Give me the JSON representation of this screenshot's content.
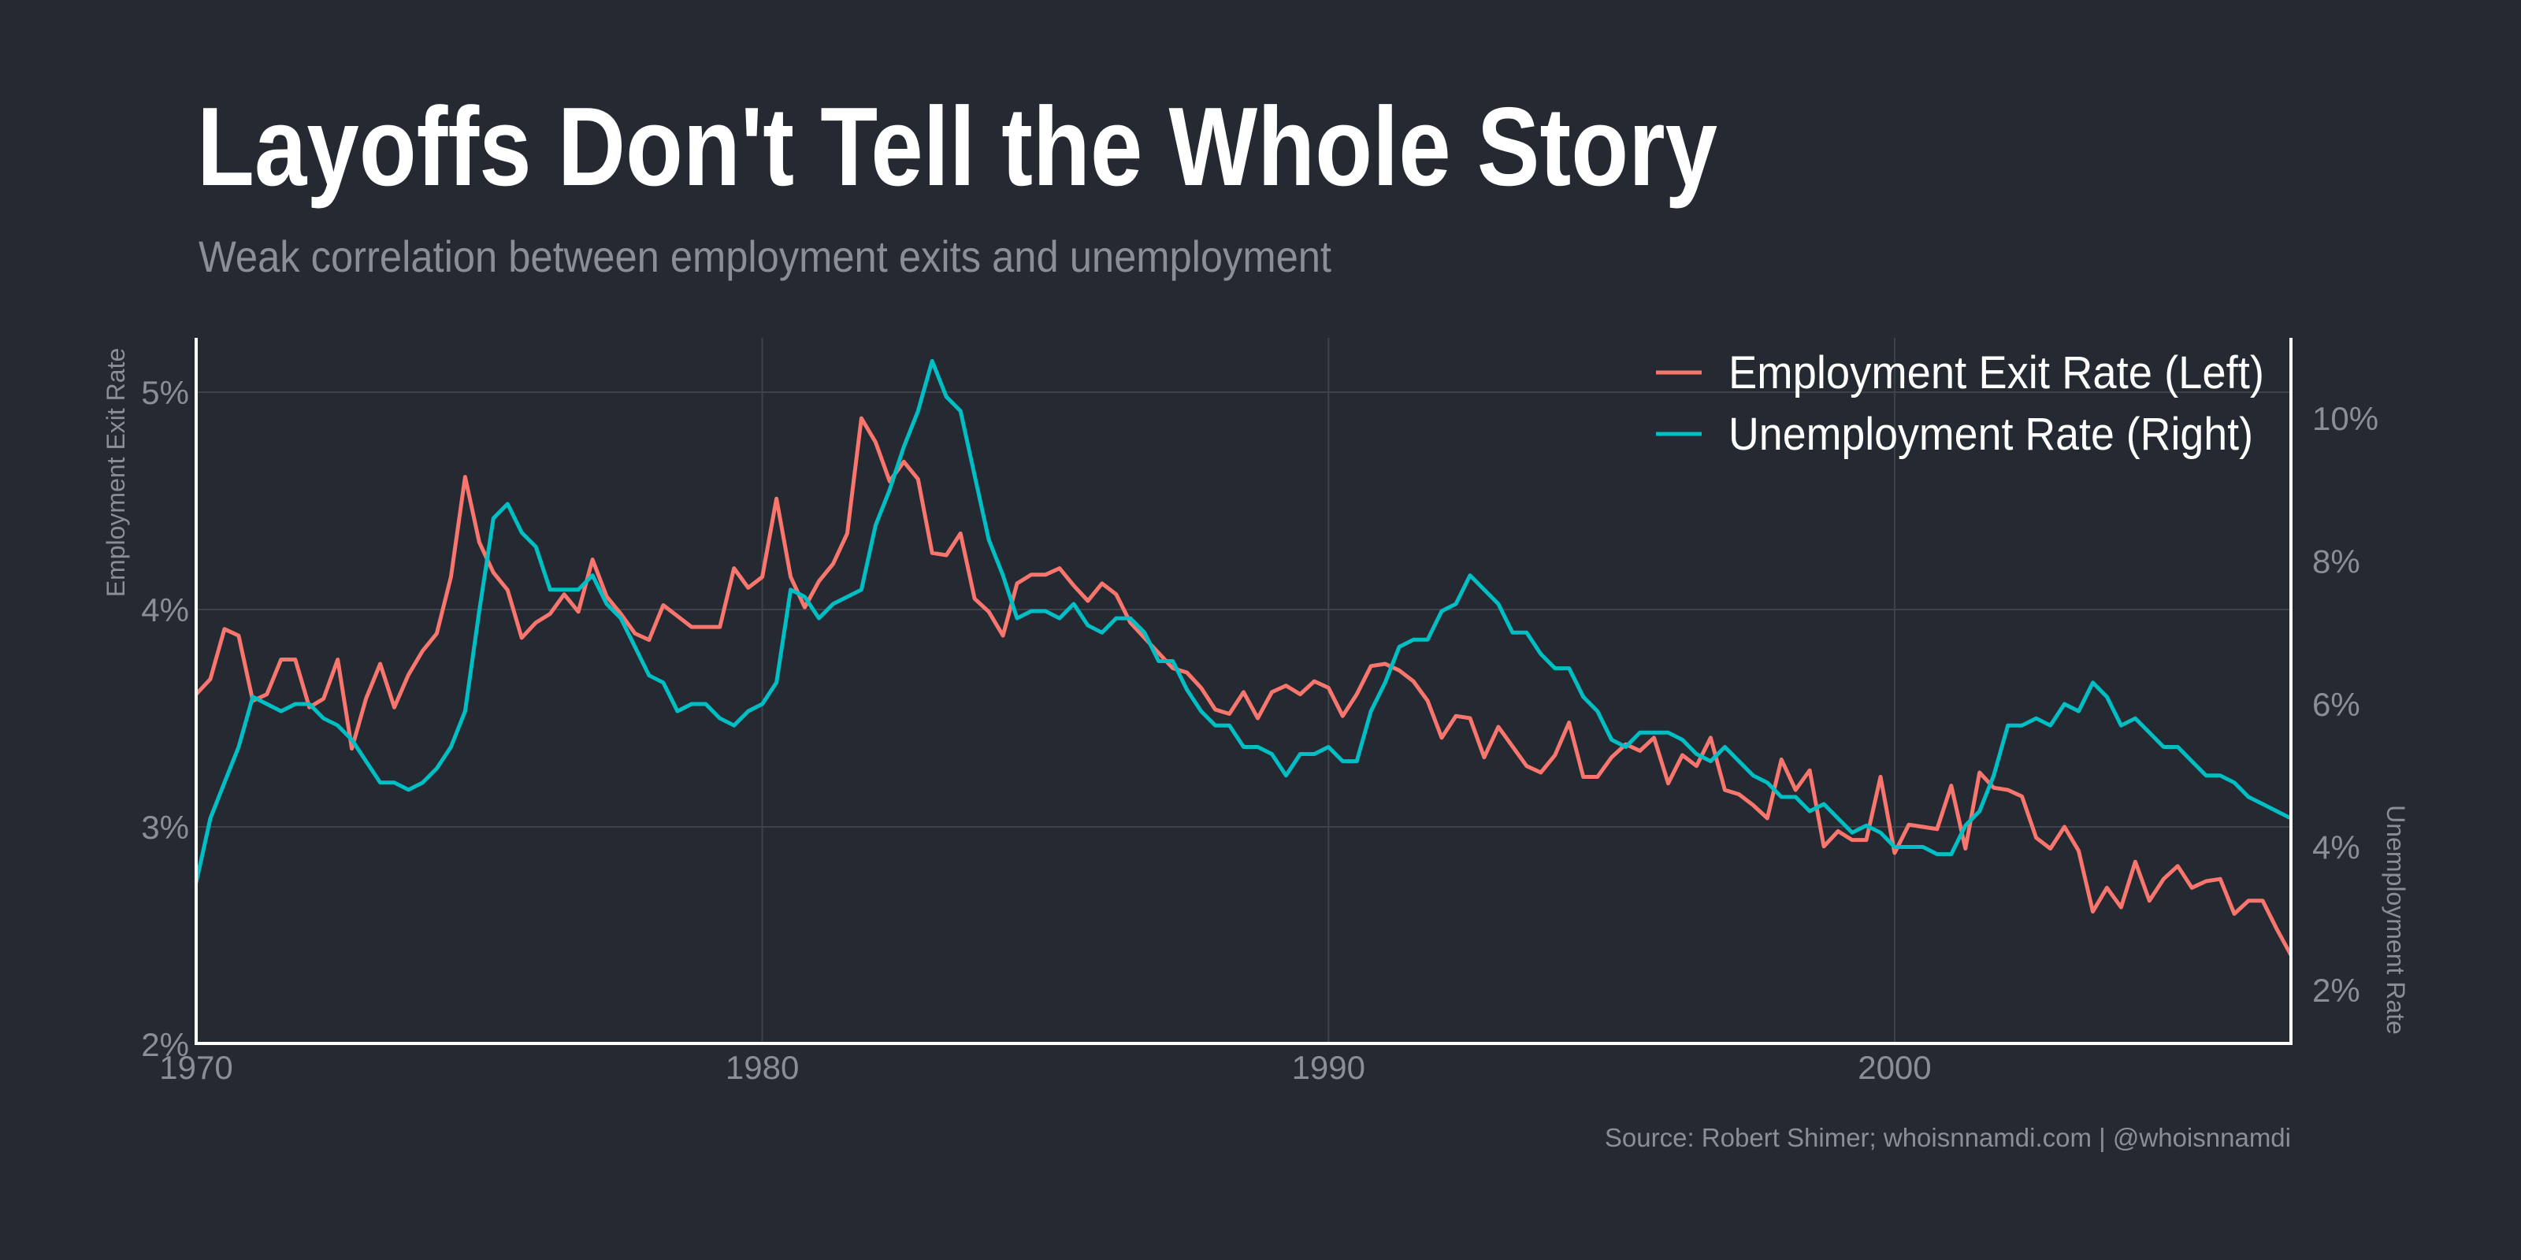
{
  "title": "Layoffs Don't Tell the Whole Story",
  "subtitle": "Weak correlation between employment exits and unemployment",
  "source": "Source: Robert Shimer; whoisnnamdi.com | @whoisnnamdi",
  "chart_data": {
    "type": "line",
    "title": "Layoffs Don't Tell the Whole Story",
    "subtitle": "Weak correlation between employment exits and unemployment",
    "ylabel_left": "Employment Exit Rate",
    "ylabel_right": "Unemployment Rate",
    "xlabel": "",
    "xlim": [
      1970,
      2007
    ],
    "ylim_left": [
      2,
      5.27
    ],
    "ylim_right": [
      2.2,
      11.1
    ],
    "x_ticks": [
      "1970",
      "1980",
      "1990",
      "2000"
    ],
    "x_tick_values": [
      1970,
      1980,
      1990,
      2000
    ],
    "y_left_ticks": [
      "2%",
      "3%",
      "4%",
      "5%"
    ],
    "y_left_tick_values": [
      2,
      3,
      4,
      5
    ],
    "y_right_ticks": [
      "2%",
      "4%",
      "6%",
      "8%",
      "10%"
    ],
    "y_right_tick_values": [
      2,
      4,
      6,
      8,
      10
    ],
    "grid": true,
    "legend_position": "top-right",
    "x_start_year": 1970,
    "frequency": "quarterly",
    "series": [
      {
        "name": "Employment Exit Rate (Left)",
        "axis": "left",
        "color": "#f8766d",
        "values": [
          3.61,
          3.68,
          3.91,
          3.88,
          3.58,
          3.61,
          3.77,
          3.77,
          3.55,
          3.59,
          3.77,
          3.36,
          3.59,
          3.75,
          3.55,
          3.7,
          3.81,
          3.89,
          4.15,
          4.61,
          4.31,
          4.17,
          4.09,
          3.87,
          3.94,
          3.98,
          4.07,
          3.99,
          4.23,
          4.06,
          3.98,
          3.89,
          3.86,
          4.02,
          3.97,
          3.92,
          3.92,
          3.92,
          4.19,
          4.1,
          4.15,
          4.51,
          4.15,
          4.01,
          4.13,
          4.21,
          4.35,
          4.88,
          4.77,
          4.59,
          4.68,
          4.6,
          4.26,
          4.25,
          4.35,
          4.05,
          3.99,
          3.88,
          4.12,
          4.16,
          4.16,
          4.19,
          4.11,
          4.04,
          4.12,
          4.07,
          3.94,
          3.87,
          3.8,
          3.73,
          3.71,
          3.64,
          3.54,
          3.52,
          3.62,
          3.5,
          3.62,
          3.65,
          3.61,
          3.67,
          3.64,
          3.51,
          3.61,
          3.74,
          3.75,
          3.72,
          3.67,
          3.58,
          3.41,
          3.51,
          3.5,
          3.32,
          3.46,
          3.37,
          3.28,
          3.25,
          3.33,
          3.48,
          3.23,
          3.23,
          3.32,
          3.38,
          3.35,
          3.41,
          3.2,
          3.33,
          3.28,
          3.41,
          3.17,
          3.15,
          3.1,
          3.04,
          3.31,
          3.17,
          3.26,
          2.91,
          2.98,
          2.94,
          2.94,
          3.23,
          2.88,
          3.01,
          3.0,
          2.99,
          3.19,
          2.9,
          3.25,
          3.18,
          3.17,
          3.14,
          2.95,
          2.9,
          3.0,
          2.89,
          2.61,
          2.72,
          2.63,
          2.84,
          2.66,
          2.76,
          2.82,
          2.72,
          2.75,
          2.76,
          2.6,
          2.66,
          2.66,
          2.53,
          2.41
        ]
      },
      {
        "name": "Unemployment Rate (Right)",
        "axis": "right",
        "color": "#00bfc4",
        "values": [
          3.5,
          4.4,
          4.9,
          5.4,
          6.1,
          6.0,
          5.9,
          6.0,
          6.0,
          5.8,
          5.7,
          5.5,
          5.2,
          4.9,
          4.9,
          4.8,
          4.9,
          5.1,
          5.4,
          5.9,
          7.3,
          8.6,
          8.8,
          8.4,
          8.2,
          7.6,
          7.6,
          7.6,
          7.8,
          7.4,
          7.2,
          6.8,
          6.4,
          6.3,
          5.9,
          6.0,
          6.0,
          5.8,
          5.7,
          5.9,
          6.0,
          6.3,
          7.6,
          7.5,
          7.2,
          7.4,
          7.5,
          7.6,
          8.5,
          9.0,
          9.6,
          10.1,
          10.8,
          10.3,
          10.1,
          9.2,
          8.3,
          7.8,
          7.2,
          7.3,
          7.3,
          7.2,
          7.4,
          7.1,
          7.0,
          7.2,
          7.2,
          7.0,
          6.6,
          6.6,
          6.2,
          5.9,
          5.7,
          5.7,
          5.4,
          5.4,
          5.3,
          5.0,
          5.3,
          5.3,
          5.4,
          5.2,
          5.2,
          5.9,
          6.3,
          6.8,
          6.9,
          6.9,
          7.3,
          7.4,
          7.8,
          7.6,
          7.4,
          7.0,
          7.0,
          6.7,
          6.5,
          6.5,
          6.1,
          5.9,
          5.5,
          5.4,
          5.6,
          5.6,
          5.6,
          5.5,
          5.3,
          5.2,
          5.4,
          5.2,
          5.0,
          4.9,
          4.7,
          4.7,
          4.5,
          4.6,
          4.4,
          4.2,
          4.3,
          4.2,
          4.0,
          4.0,
          4.0,
          3.9,
          3.9,
          4.3,
          4.5,
          5.0,
          5.7,
          5.7,
          5.8,
          5.7,
          6.0,
          5.9,
          6.3,
          6.1,
          5.7,
          5.8,
          5.6,
          5.4,
          5.4,
          5.2,
          5.0,
          5.0,
          4.9,
          4.7,
          4.6,
          4.5,
          4.4
        ]
      }
    ]
  }
}
